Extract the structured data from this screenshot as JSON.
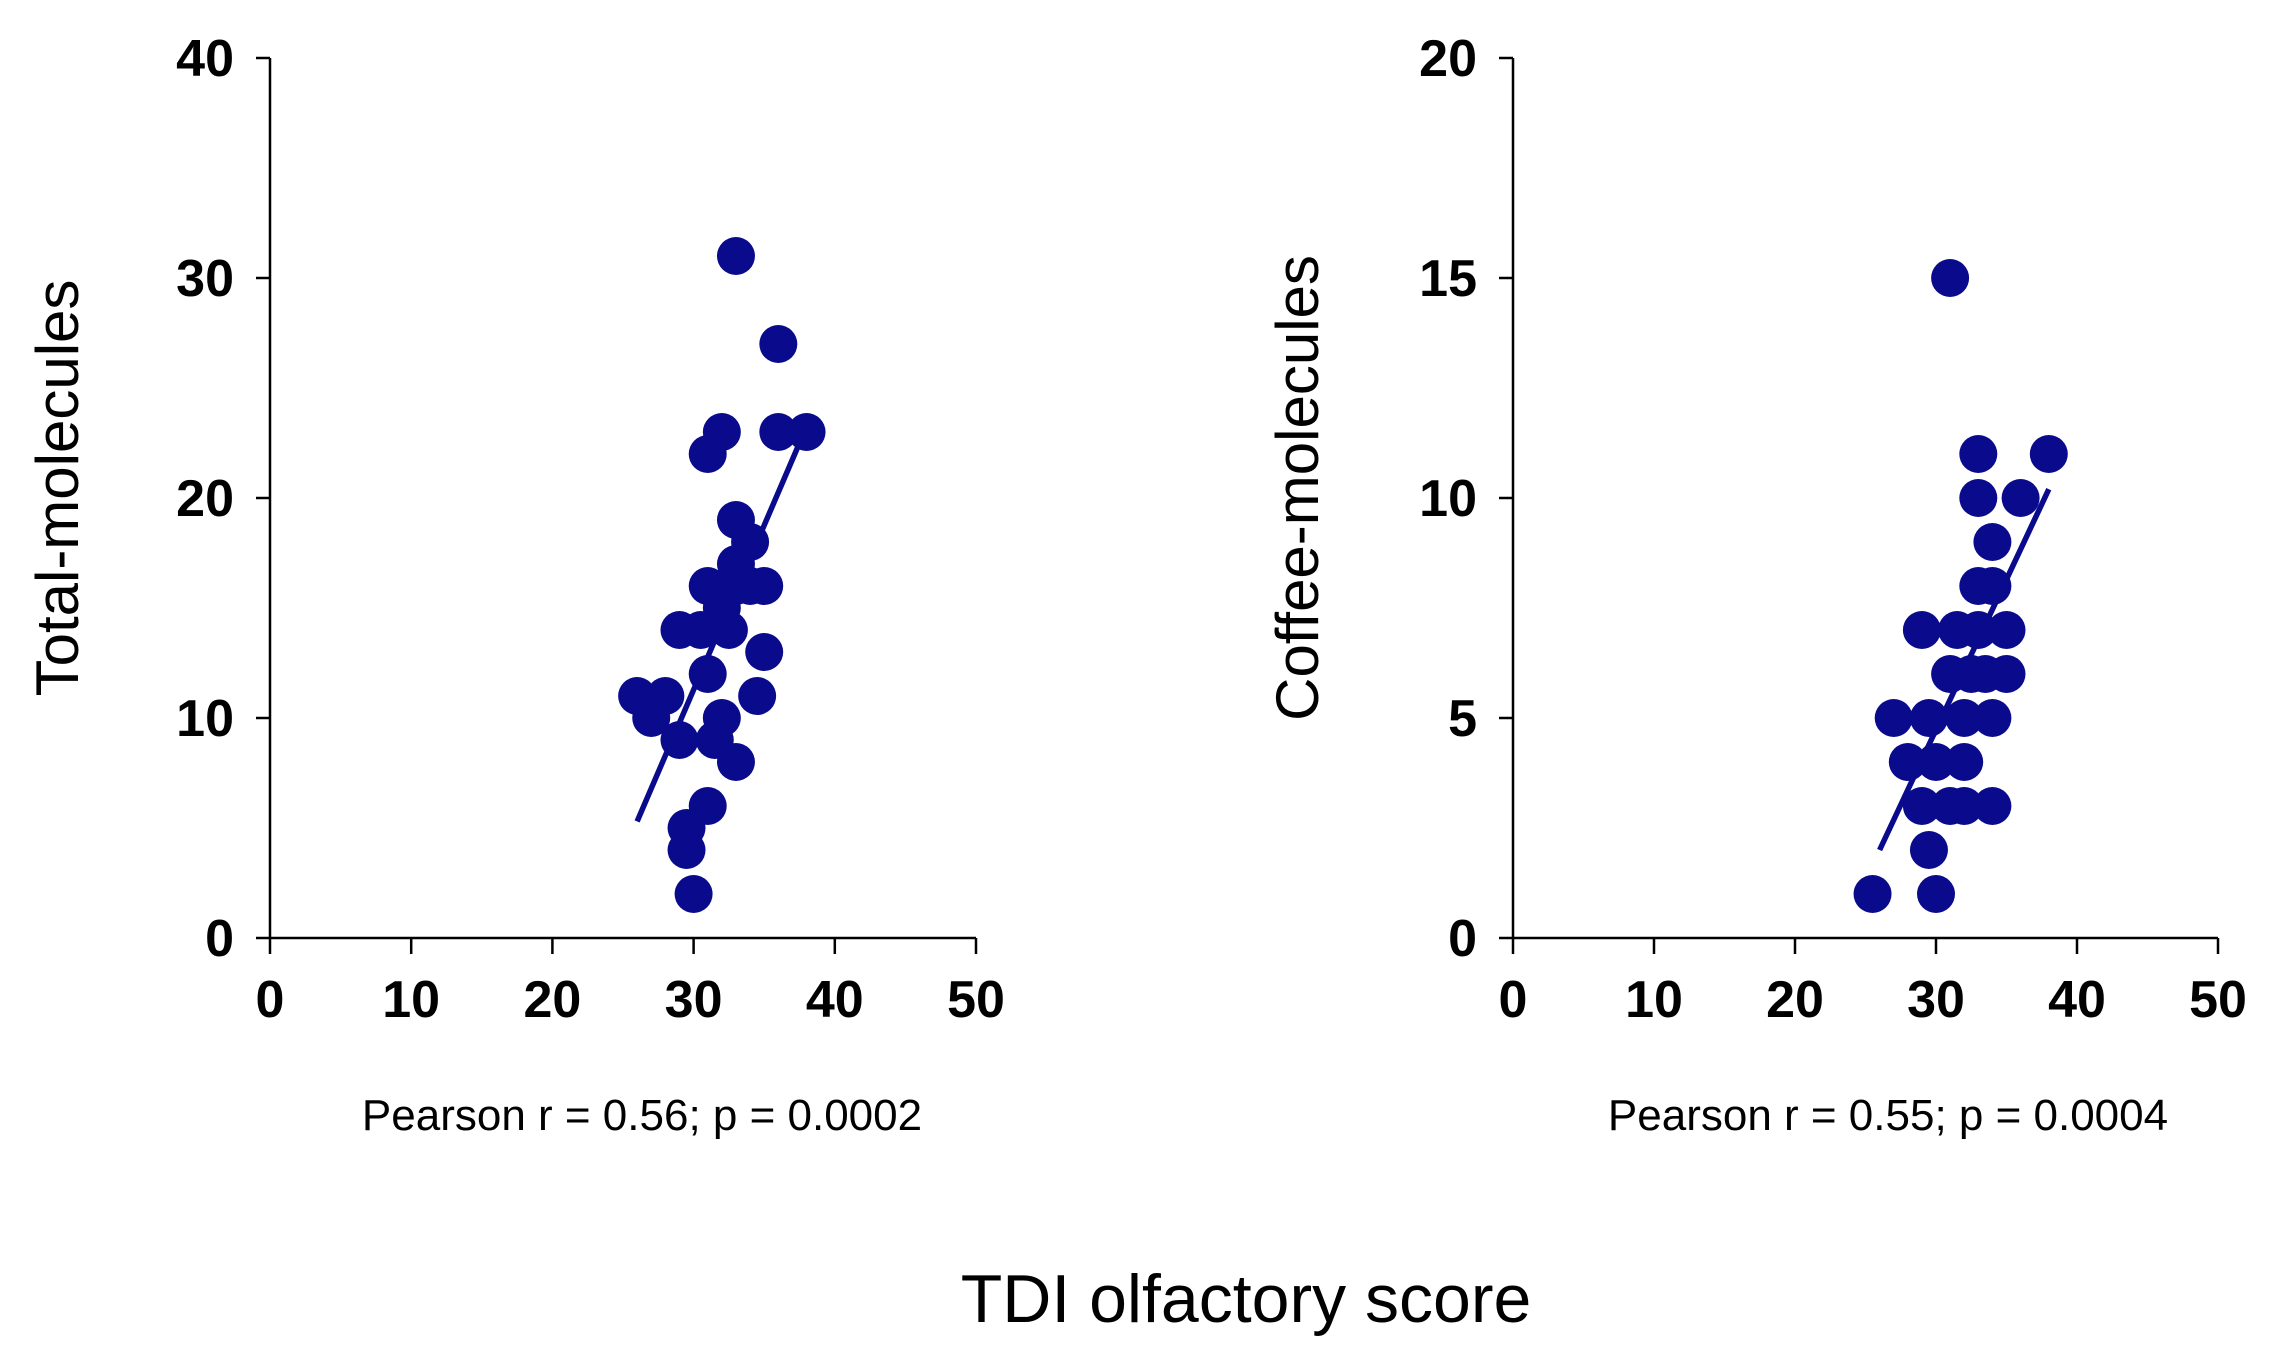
{
  "colors": {
    "marker": "#0a0a8c",
    "axis": "#000000",
    "background": "#ffffff"
  },
  "xlabel": "TDI olfactory score",
  "chart_data": [
    {
      "type": "scatter",
      "ylabel": "Total-molecules",
      "xlabel": "TDI olfactory score",
      "xlim": [
        0,
        50
      ],
      "ylim": [
        0,
        40
      ],
      "xticks": [
        0,
        10,
        20,
        30,
        40,
        50
      ],
      "yticks": [
        0,
        10,
        20,
        30,
        40
      ],
      "annotation": "Pearson r = 0.56; p = 0.0002",
      "trendline": {
        "x": [
          26,
          37.5
        ],
        "y": [
          5.3,
          22.5
        ]
      },
      "points": [
        {
          "x": 26,
          "y": 11
        },
        {
          "x": 27,
          "y": 10
        },
        {
          "x": 28,
          "y": 11
        },
        {
          "x": 29,
          "y": 14
        },
        {
          "x": 29,
          "y": 9
        },
        {
          "x": 29.5,
          "y": 5
        },
        {
          "x": 29.5,
          "y": 4
        },
        {
          "x": 30,
          "y": 2
        },
        {
          "x": 30.5,
          "y": 14
        },
        {
          "x": 31,
          "y": 16
        },
        {
          "x": 31,
          "y": 12
        },
        {
          "x": 31,
          "y": 6
        },
        {
          "x": 31,
          "y": 22
        },
        {
          "x": 31.5,
          "y": 9
        },
        {
          "x": 32,
          "y": 10
        },
        {
          "x": 32,
          "y": 23
        },
        {
          "x": 32,
          "y": 15
        },
        {
          "x": 32.5,
          "y": 14
        },
        {
          "x": 33,
          "y": 19
        },
        {
          "x": 33,
          "y": 17
        },
        {
          "x": 33,
          "y": 16
        },
        {
          "x": 33,
          "y": 31
        },
        {
          "x": 33,
          "y": 8
        },
        {
          "x": 34,
          "y": 18
        },
        {
          "x": 34,
          "y": 16
        },
        {
          "x": 34.5,
          "y": 11
        },
        {
          "x": 35,
          "y": 13
        },
        {
          "x": 35,
          "y": 16
        },
        {
          "x": 36,
          "y": 27
        },
        {
          "x": 36,
          "y": 23
        },
        {
          "x": 38,
          "y": 23
        }
      ]
    },
    {
      "type": "scatter",
      "ylabel": "Coffee-molecules",
      "xlabel": "TDI olfactory score",
      "xlim": [
        0,
        50
      ],
      "ylim": [
        0,
        20
      ],
      "xticks": [
        0,
        10,
        20,
        30,
        40,
        50
      ],
      "yticks": [
        0,
        5,
        10,
        15,
        20
      ],
      "annotation": "Pearson r = 0.55; p = 0.0004",
      "trendline": {
        "x": [
          26,
          38
        ],
        "y": [
          2,
          10.2
        ]
      },
      "points": [
        {
          "x": 25.5,
          "y": 1
        },
        {
          "x": 27,
          "y": 5
        },
        {
          "x": 28,
          "y": 4
        },
        {
          "x": 29,
          "y": 7
        },
        {
          "x": 29,
          "y": 3
        },
        {
          "x": 29.5,
          "y": 5
        },
        {
          "x": 29.5,
          "y": 2
        },
        {
          "x": 30,
          "y": 1
        },
        {
          "x": 30,
          "y": 4
        },
        {
          "x": 31,
          "y": 15
        },
        {
          "x": 31,
          "y": 6
        },
        {
          "x": 31,
          "y": 3
        },
        {
          "x": 31.5,
          "y": 7
        },
        {
          "x": 32,
          "y": 4
        },
        {
          "x": 32,
          "y": 5
        },
        {
          "x": 32,
          "y": 3
        },
        {
          "x": 32.5,
          "y": 6
        },
        {
          "x": 33,
          "y": 11
        },
        {
          "x": 33,
          "y": 10
        },
        {
          "x": 33,
          "y": 8
        },
        {
          "x": 33,
          "y": 7
        },
        {
          "x": 33.5,
          "y": 6
        },
        {
          "x": 34,
          "y": 9
        },
        {
          "x": 34,
          "y": 8
        },
        {
          "x": 34,
          "y": 5
        },
        {
          "x": 34,
          "y": 3
        },
        {
          "x": 35,
          "y": 7
        },
        {
          "x": 35,
          "y": 6
        },
        {
          "x": 36,
          "y": 10
        },
        {
          "x": 38,
          "y": 11
        }
      ]
    }
  ]
}
